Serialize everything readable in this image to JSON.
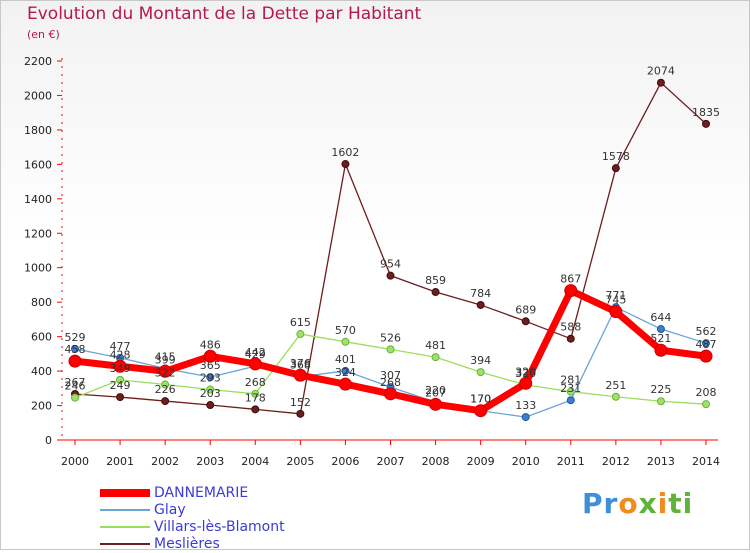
{
  "title": "Evolution du Montant de la Dette par Habitant",
  "unit": "(en €)",
  "logo_text": "Proxiti",
  "chart_data": {
    "type": "line",
    "title": "Evolution du Montant de la Dette par Habitant",
    "ylabel": "(en €)",
    "xlabel": "",
    "x": [
      2000,
      2001,
      2002,
      2003,
      2004,
      2005,
      2006,
      2007,
      2008,
      2009,
      2010,
      2011,
      2012,
      2013,
      2014
    ],
    "ylim": [
      0,
      2200
    ],
    "yticks": [
      0,
      200,
      400,
      600,
      800,
      1000,
      1200,
      1400,
      1600,
      1800,
      2000,
      2200
    ],
    "grid": false,
    "legend_position": "bottom-left",
    "series": [
      {
        "name": "DANNEMARIE",
        "color": "#ff0000",
        "values": [
          458,
          428,
          399,
          486,
          442,
          376,
          324,
          268,
          207,
          170,
          329,
          867,
          745,
          521,
          487
        ]
      },
      {
        "name": "Glay",
        "color": "#6aa5d8",
        "values": [
          529,
          477,
          415,
          365,
          429,
          368,
          401,
          307,
          220,
          170,
          133,
          231,
          771,
          644,
          562
        ]
      },
      {
        "name": "Villars-lès-Blamont",
        "color": "#99e05a",
        "values": [
          246,
          349,
          322,
          293,
          268,
          615,
          570,
          526,
          481,
          394,
          320,
          281,
          251,
          225,
          208
        ]
      },
      {
        "name": "Meslières",
        "color": "#6e1c1c",
        "values": [
          267,
          249,
          226,
          203,
          178,
          152,
          1602,
          954,
          859,
          784,
          689,
          588,
          1578,
          2074,
          1835
        ]
      }
    ]
  }
}
